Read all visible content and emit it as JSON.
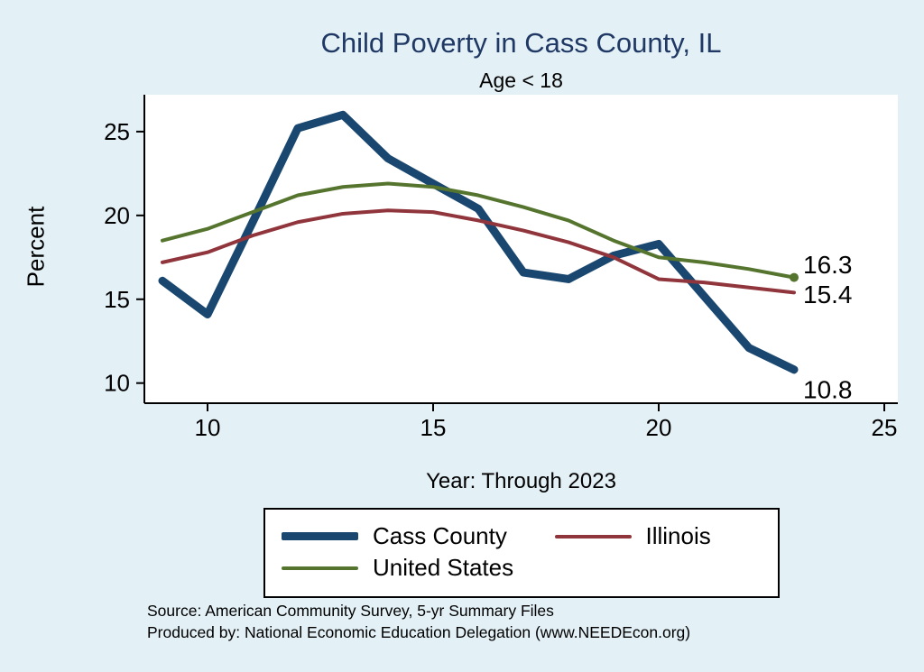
{
  "title": "Child Poverty in Cass County, IL",
  "subtitle": "Age < 18",
  "y_axis_label": "Percent",
  "x_axis_caption": "Year: Through 2023",
  "footer": {
    "line1": "Source: American Community Survey, 5-yr Summary Files",
    "line2": "Produced by: National Economic Education Delegation (www.NEEDEcon.org)"
  },
  "colors": {
    "page_background": "#e3f1f7",
    "plot_background": "#ffffff",
    "title_text": "#1f3864",
    "axis": "#000000"
  },
  "chart_data": {
    "type": "line",
    "title": "Child Poverty in Cass County, IL",
    "subtitle": "Age < 18",
    "xlabel": "Year: Through 2023",
    "ylabel": "Percent",
    "x": [
      9,
      10,
      11,
      12,
      13,
      14,
      15,
      16,
      17,
      18,
      19,
      20,
      21,
      22,
      23
    ],
    "series": [
      {
        "name": "Cass County",
        "color": "#1a476f",
        "width": 9,
        "values": [
          16.1,
          14.1,
          19.6,
          25.2,
          26.0,
          23.4,
          21.9,
          20.4,
          16.6,
          16.2,
          17.6,
          18.3,
          15.2,
          12.1,
          10.8
        ],
        "end_label": "10.8",
        "end_label_dy": 22,
        "end_marker": false
      },
      {
        "name": "Illinois",
        "color": "#90353b",
        "width": 4,
        "values": [
          17.2,
          17.8,
          18.8,
          19.6,
          20.1,
          20.3,
          20.2,
          19.7,
          19.1,
          18.4,
          17.5,
          16.2,
          16.0,
          15.7,
          15.4
        ],
        "end_label": "15.4",
        "end_label_dy": 2,
        "end_marker": false
      },
      {
        "name": "United States",
        "color": "#55752f",
        "width": 4,
        "values": [
          18.5,
          19.2,
          20.2,
          21.2,
          21.7,
          21.9,
          21.7,
          21.2,
          20.5,
          19.7,
          18.5,
          17.5,
          17.2,
          16.8,
          16.3
        ],
        "end_label": "16.3",
        "end_label_dy": -14,
        "end_marker": true
      }
    ],
    "xlim": [
      8.6,
      25.3
    ],
    "ylim": [
      8.8,
      27.2
    ],
    "xticks": [
      10,
      15,
      20,
      25
    ],
    "yticks": [
      10,
      15,
      20,
      25
    ],
    "grid": false,
    "legend_position": "bottom"
  }
}
